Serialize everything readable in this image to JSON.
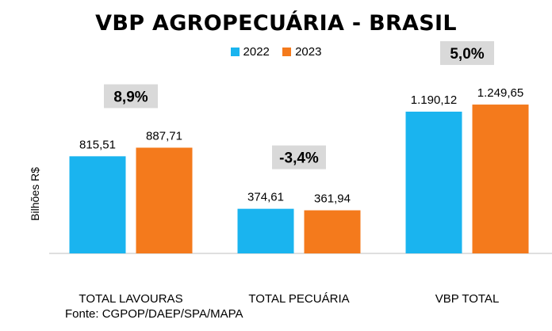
{
  "chart_data": {
    "type": "bar",
    "title": "VBP AGROPECUÁRIA - BRASIL",
    "ylabel": "Bilhões R$",
    "categories": [
      "TOTAL LAVOURAS",
      "TOTAL PECUÁRIA",
      "VBP TOTAL"
    ],
    "series": [
      {
        "name": "2022",
        "color": "#1ab4ef",
        "values": [
          815.51,
          374.61,
          1190.12
        ],
        "labels": [
          "815,51",
          "374,61",
          "1.190,12"
        ]
      },
      {
        "name": "2023",
        "color": "#f47a1c",
        "values": [
          887.71,
          361.94,
          1249.65
        ],
        "labels": [
          "887,71",
          "361,94",
          "1.249,65"
        ]
      }
    ],
    "growth_labels": [
      "8,9%",
      "-3,4%",
      "5,0%"
    ],
    "ylim": [
      0,
      1250
    ],
    "grid": false,
    "legend": "top-center"
  },
  "source": "Fonte: CGPOP/DAEP/SPA/MAPA"
}
